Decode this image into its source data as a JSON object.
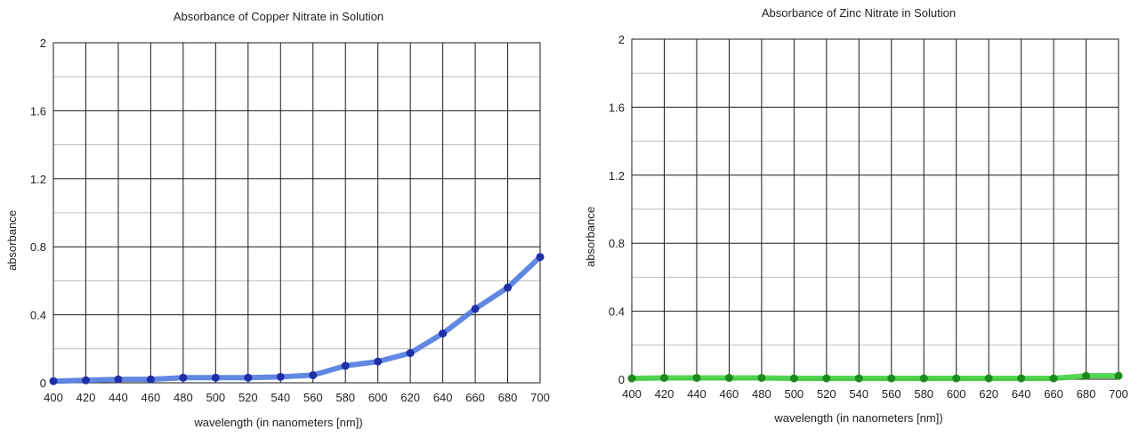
{
  "chart_data": [
    {
      "type": "line",
      "title": "Absorbance of Copper Nitrate in Solution",
      "xlabel": "wavelength (in nanometers [nm])",
      "ylabel": "absorbance",
      "xlim": [
        400,
        700
      ],
      "ylim": [
        0,
        2
      ],
      "xticks": [
        "400",
        "420",
        "440",
        "460",
        "480",
        "500",
        "520",
        "540",
        "560",
        "580",
        "600",
        "620",
        "640",
        "660",
        "680",
        "700"
      ],
      "yticks": [
        "0",
        "0.4",
        "0.8",
        "1.2",
        "1.6",
        "2"
      ],
      "grid": true,
      "line_color": "#4f7be0",
      "marker_color": "#1f2fa8",
      "x": [
        400,
        420,
        440,
        460,
        480,
        500,
        520,
        540,
        560,
        580,
        600,
        620,
        640,
        660,
        680,
        700
      ],
      "y": [
        0.01,
        0.015,
        0.02,
        0.02,
        0.03,
        0.03,
        0.03,
        0.035,
        0.045,
        0.1,
        0.125,
        0.175,
        0.29,
        0.435,
        0.56,
        0.74
      ]
    },
    {
      "type": "line",
      "title": "Absorbance of Zinc Nitrate in Solution",
      "xlabel": "wavelength (in nanometers [nm])",
      "ylabel": "absorbance",
      "xlim": [
        400,
        700
      ],
      "ylim": [
        0,
        2
      ],
      "xticks": [
        "400",
        "420",
        "440",
        "460",
        "480",
        "500",
        "520",
        "540",
        "560",
        "580",
        "600",
        "620",
        "640",
        "660",
        "680",
        "700"
      ],
      "yticks": [
        "0",
        "0.4",
        "0.8",
        "1.2",
        "1.6",
        "2"
      ],
      "grid": true,
      "line_color": "#3fd23f",
      "marker_color": "#1e8a1e",
      "x": [
        400,
        420,
        440,
        460,
        480,
        500,
        520,
        540,
        560,
        580,
        600,
        620,
        640,
        660,
        680,
        700
      ],
      "y": [
        0.005,
        0.008,
        0.008,
        0.008,
        0.008,
        0.005,
        0.005,
        0.005,
        0.005,
        0.005,
        0.005,
        0.005,
        0.005,
        0.005,
        0.02,
        0.02
      ]
    }
  ]
}
